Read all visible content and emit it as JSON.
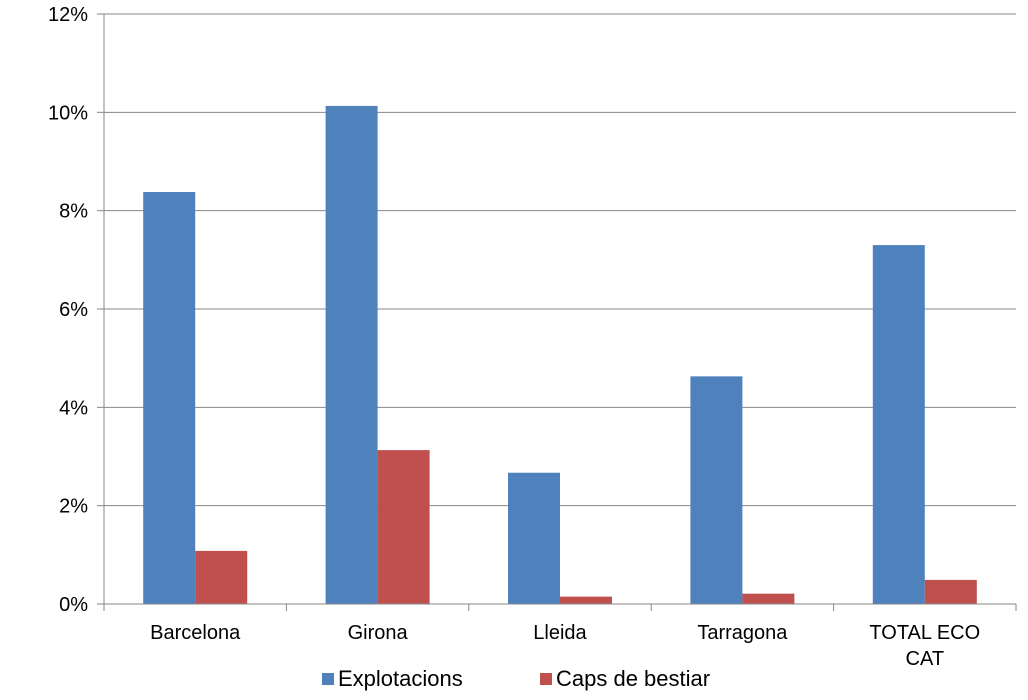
{
  "chart_data": {
    "type": "bar",
    "categories": [
      "Barcelona",
      "Girona",
      "Lleida",
      "Tarragona",
      [
        "TOTAL  ECO",
        "CAT"
      ]
    ],
    "series": [
      {
        "name": "Explotacions",
        "color": "#4F81BD",
        "values": [
          8.38,
          10.13,
          2.67,
          4.63,
          7.3
        ]
      },
      {
        "name": "Caps de bestiar",
        "color": "#C0504D",
        "values": [
          1.08,
          3.13,
          0.15,
          0.21,
          0.49
        ]
      }
    ],
    "y_ticks": [
      "0%",
      "2%",
      "4%",
      "6%",
      "8%",
      "10%",
      "12%"
    ],
    "ylim": [
      0,
      12
    ],
    "grid": true,
    "legend_position": "bottom"
  }
}
